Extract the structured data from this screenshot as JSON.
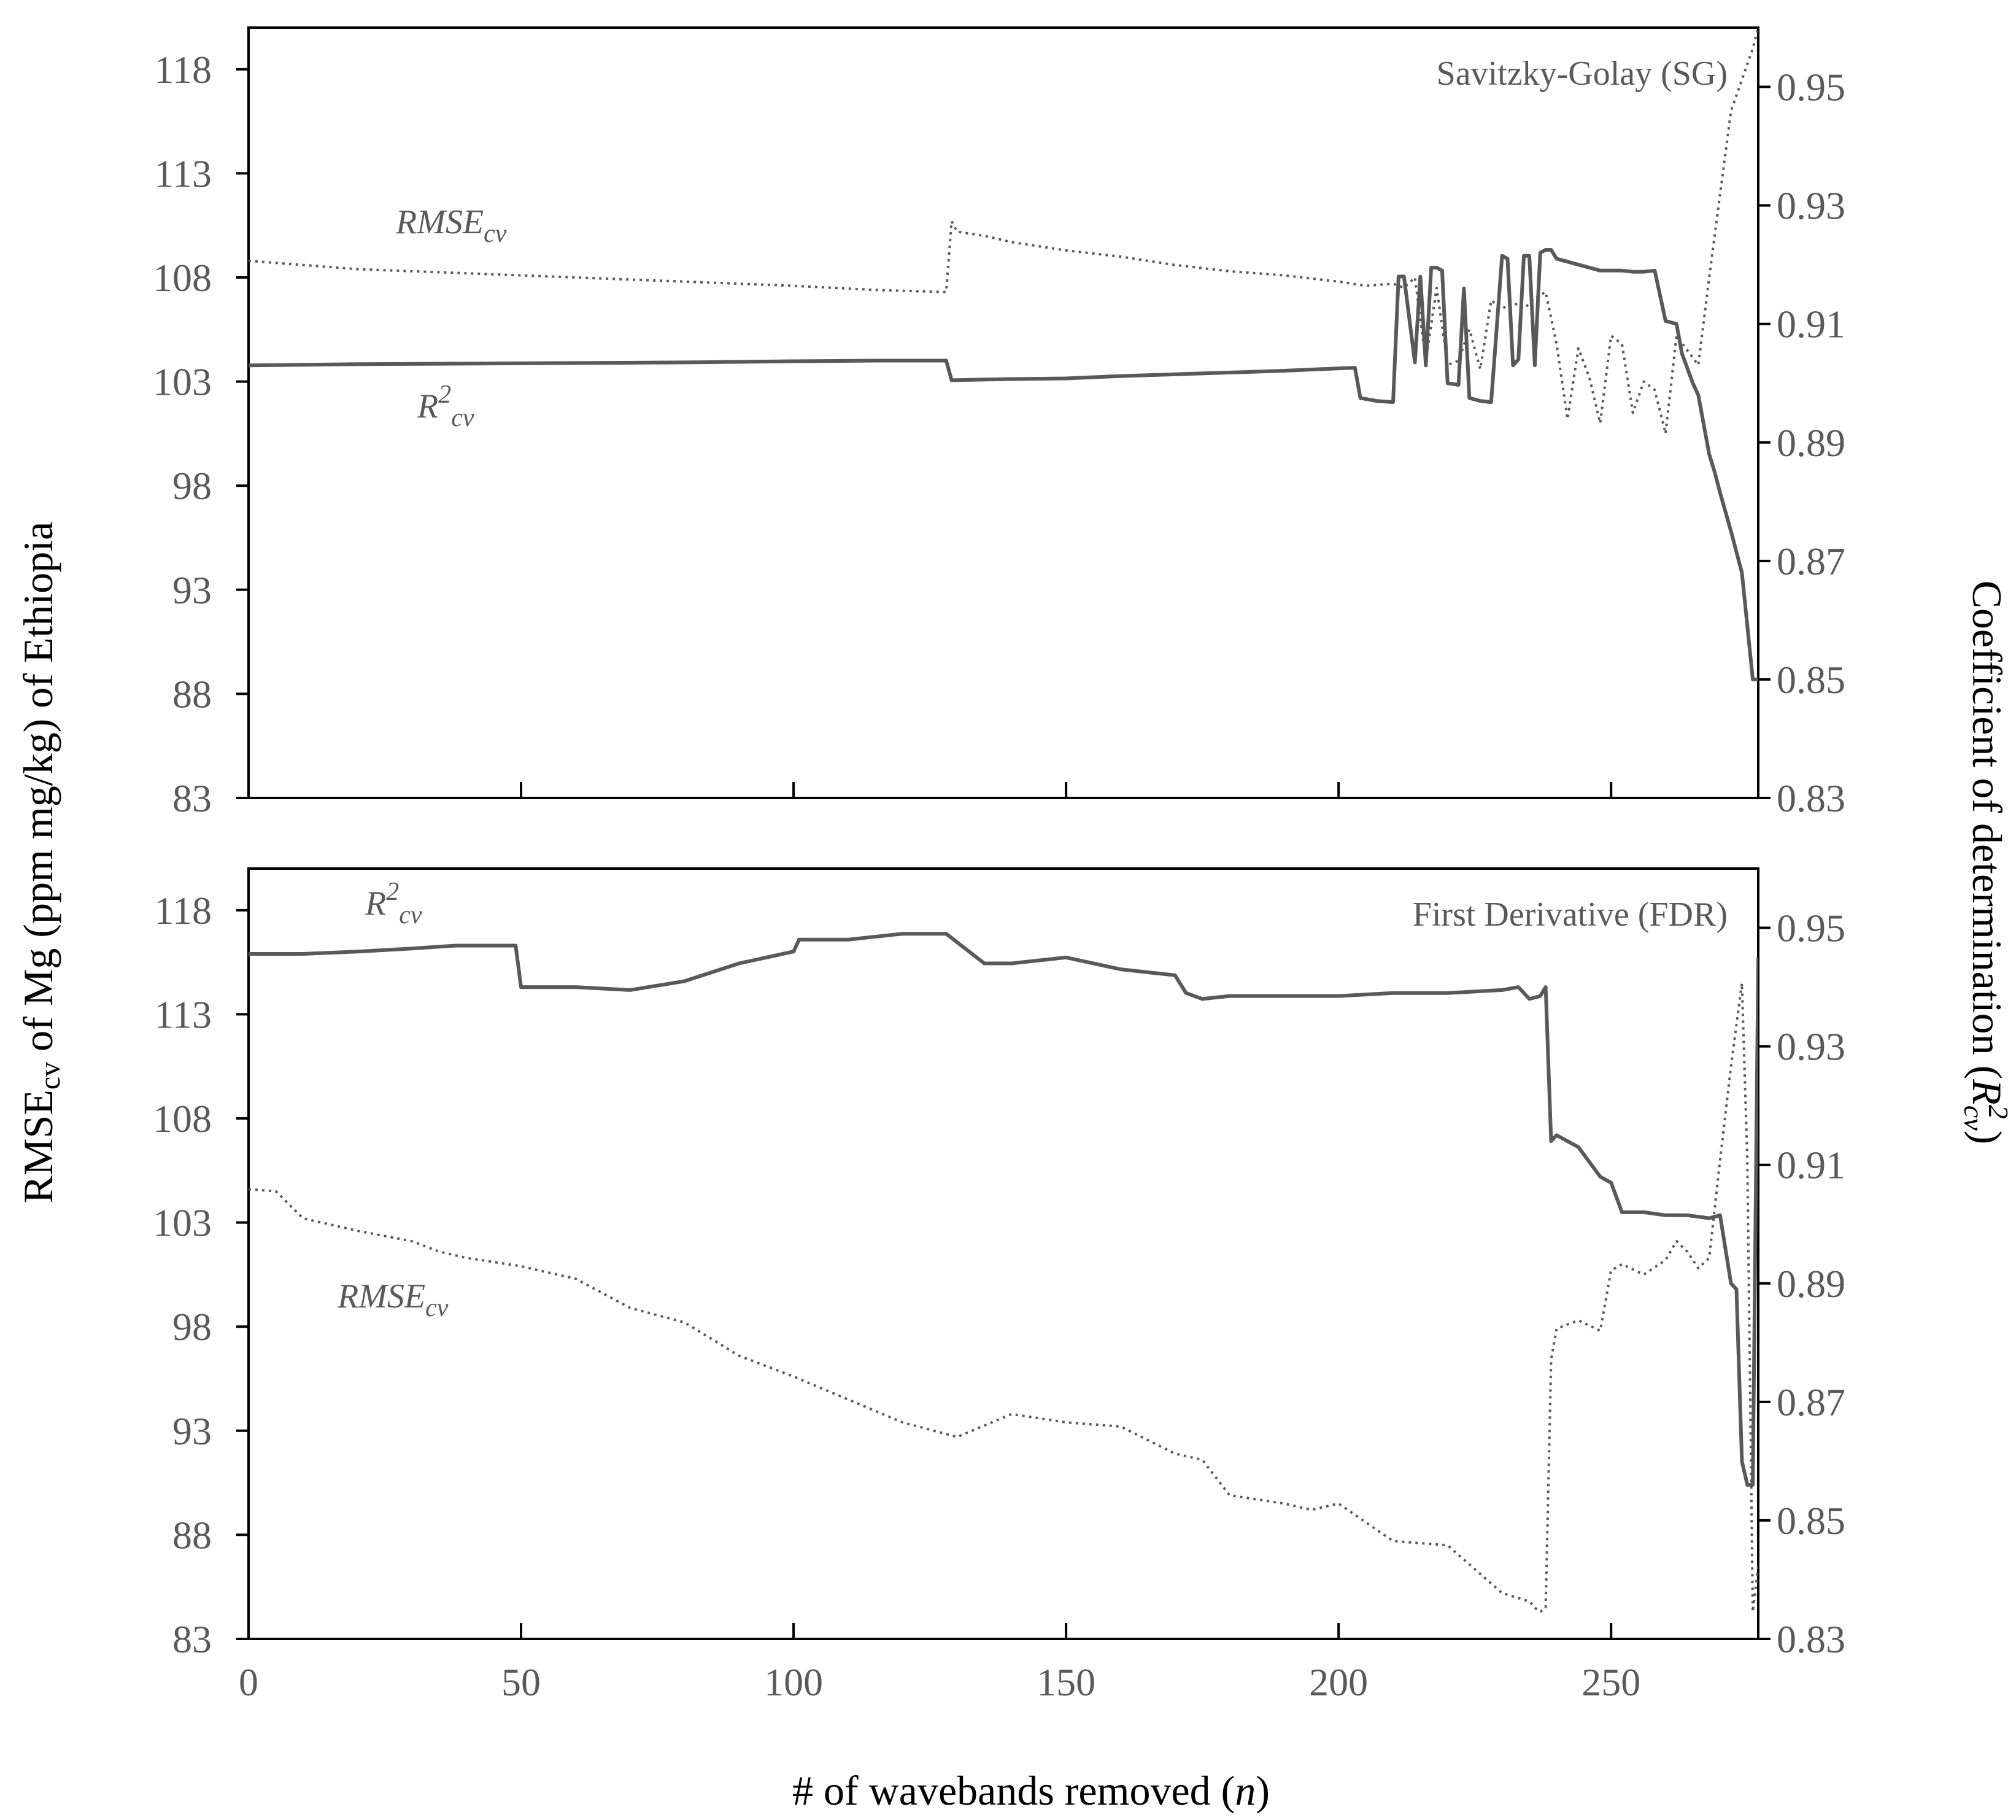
{
  "chart_data": [
    {
      "type": "line",
      "title": "Savitzky-Golay (SG)",
      "xlabel": "# of wavebands removed (n)",
      "ylabel_left": "RMSEcv of Mg (ppm mg/kg) of Ethiopia",
      "ylabel_right": "Coefficient of determination (R2cv)",
      "xlim": [
        0,
        277
      ],
      "ylim_left": [
        83,
        120
      ],
      "ylim_right": [
        0.83,
        0.96
      ],
      "x_ticks": [
        0,
        50,
        100,
        150,
        200,
        250
      ],
      "y_ticks_left": [
        83,
        88,
        93,
        98,
        103,
        108,
        113,
        118
      ],
      "y_ticks_right": [
        0.83,
        0.85,
        0.87,
        0.89,
        0.91,
        0.93,
        0.95
      ],
      "series_labels": {
        "rmse": "RMSE",
        "rmse_sub": "cv",
        "r2": "R",
        "r2_sup": "2",
        "r2_sub": "cv"
      },
      "series": [
        {
          "name": "RMSEcv",
          "axis": "left",
          "style": "dotted",
          "x": [
            0,
            20,
            40,
            60,
            80,
            100,
            115,
            128,
            129,
            130,
            135,
            140,
            150,
            160,
            170,
            180,
            190,
            200,
            205,
            210,
            212,
            214,
            216,
            218,
            220,
            222,
            224,
            226,
            228,
            230,
            232,
            234,
            236,
            238,
            240,
            242,
            244,
            246,
            248,
            250,
            252,
            254,
            256,
            258,
            260,
            262,
            264,
            266,
            268,
            270,
            272,
            274,
            276,
            277
          ],
          "values": [
            108.8,
            108.4,
            108.2,
            108.0,
            107.8,
            107.6,
            107.4,
            107.3,
            110.7,
            110.2,
            110.0,
            109.7,
            109.3,
            109.0,
            108.6,
            108.3,
            108.1,
            107.8,
            107.6,
            107.7,
            107.5,
            108.0,
            104.0,
            107.5,
            103.8,
            104.0,
            105.5,
            103.6,
            106.9,
            106.5,
            106.8,
            106.5,
            107.0,
            107.3,
            104.8,
            101.2,
            104.6,
            103.2,
            101.0,
            105.2,
            104.8,
            101.5,
            103.0,
            102.6,
            100.5,
            105.2,
            104.5,
            103.8,
            108.0,
            112.0,
            116.0,
            117.5,
            119.0,
            120.0
          ]
        },
        {
          "name": "R2cv",
          "axis": "right",
          "style": "solid",
          "x": [
            0,
            20,
            40,
            60,
            80,
            100,
            115,
            128,
            129,
            140,
            150,
            160,
            170,
            180,
            190,
            200,
            203,
            204,
            207,
            210,
            211,
            212,
            214,
            215,
            216,
            217,
            218,
            219,
            220,
            222,
            223,
            224,
            226,
            228,
            230,
            231,
            232,
            233,
            234,
            235,
            236,
            237,
            238,
            239,
            240,
            242,
            244,
            246,
            248,
            250,
            252,
            254,
            256,
            258,
            260,
            262,
            263,
            265,
            266,
            267,
            268,
            269,
            270,
            272,
            274,
            276,
            277
          ],
          "values": [
            0.903,
            0.9032,
            0.9033,
            0.9034,
            0.9035,
            0.9037,
            0.9038,
            0.9038,
            0.9005,
            0.9007,
            0.9008,
            0.9012,
            0.9015,
            0.9018,
            0.9021,
            0.9025,
            0.9026,
            0.8975,
            0.897,
            0.8968,
            0.918,
            0.918,
            0.9035,
            0.918,
            0.903,
            0.9195,
            0.9195,
            0.919,
            0.9,
            0.8997,
            0.916,
            0.8975,
            0.897,
            0.8968,
            0.9215,
            0.921,
            0.903,
            0.904,
            0.9215,
            0.9215,
            0.903,
            0.922,
            0.9225,
            0.9225,
            0.921,
            0.9205,
            0.92,
            0.9195,
            0.919,
            0.919,
            0.919,
            0.9188,
            0.9188,
            0.919,
            0.9105,
            0.91,
            0.905,
            0.9,
            0.898,
            0.893,
            0.888,
            0.885,
            0.8815,
            0.875,
            0.868,
            0.85,
            0.85
          ]
        }
      ]
    },
    {
      "type": "line",
      "title": "First Derivative (FDR)",
      "xlabel": "# of wavebands removed (n)",
      "ylabel_left": "RMSEcv of Mg (ppm mg/kg) of Ethiopia",
      "ylabel_right": "Coefficient of determination (R2cv)",
      "xlim": [
        0,
        277
      ],
      "ylim_left": [
        83,
        120
      ],
      "ylim_right": [
        0.83,
        0.96
      ],
      "x_ticks": [
        0,
        50,
        100,
        150,
        200,
        250
      ],
      "y_ticks_left": [
        83,
        88,
        93,
        98,
        103,
        108,
        113,
        118
      ],
      "y_ticks_right": [
        0.83,
        0.85,
        0.87,
        0.89,
        0.91,
        0.93,
        0.95
      ],
      "series_labels": {
        "rmse": "RMSE",
        "rmse_sub": "cv",
        "r2": "R",
        "r2_sup": "2",
        "r2_sub": "cv"
      },
      "series": [
        {
          "name": "RMSEcv",
          "axis": "left",
          "style": "dotted",
          "x": [
            0,
            5,
            10,
            20,
            30,
            35,
            40,
            50,
            60,
            70,
            80,
            90,
            100,
            110,
            120,
            130,
            140,
            150,
            160,
            170,
            175,
            180,
            190,
            195,
            200,
            210,
            220,
            230,
            235,
            236,
            237,
            238,
            239,
            240,
            244,
            248,
            250,
            252,
            256,
            260,
            262,
            264,
            266,
            268,
            270,
            272,
            274,
            275,
            276,
            277
          ],
          "values": [
            104.6,
            104.5,
            103.2,
            102.6,
            102.1,
            101.6,
            101.3,
            100.9,
            100.3,
            98.9,
            98.2,
            96.6,
            95.6,
            94.5,
            93.4,
            92.7,
            93.8,
            93.4,
            93.2,
            91.9,
            91.6,
            89.9,
            89.5,
            89.2,
            89.5,
            87.7,
            87.5,
            85.2,
            84.8,
            84.5,
            84.3,
            84.5,
            96.4,
            97.9,
            98.3,
            97.8,
            100.7,
            101.0,
            100.5,
            101.2,
            102.1,
            101.6,
            100.8,
            101.3,
            106.0,
            110.5,
            114.5,
            106.0,
            84.3,
            86.5
          ]
        },
        {
          "name": "R2cv",
          "axis": "right",
          "style": "solid",
          "x": [
            0,
            10,
            20,
            30,
            38,
            49,
            50,
            60,
            70,
            80,
            90,
            100,
            101,
            110,
            120,
            128,
            135,
            140,
            150,
            160,
            170,
            172,
            175,
            180,
            190,
            200,
            210,
            220,
            230,
            233,
            235,
            237,
            238,
            239,
            240,
            244,
            248,
            250,
            252,
            256,
            260,
            264,
            268,
            270,
            272,
            273,
            274,
            275,
            276,
            277
          ],
          "values": [
            0.9456,
            0.9456,
            0.946,
            0.9465,
            0.947,
            0.947,
            0.94,
            0.94,
            0.9395,
            0.941,
            0.944,
            0.946,
            0.948,
            0.948,
            0.949,
            0.949,
            0.944,
            0.944,
            0.945,
            0.943,
            0.942,
            0.939,
            0.938,
            0.9385,
            0.9385,
            0.9385,
            0.939,
            0.939,
            0.9395,
            0.94,
            0.938,
            0.9385,
            0.94,
            0.914,
            0.915,
            0.913,
            0.908,
            0.907,
            0.902,
            0.902,
            0.9015,
            0.9015,
            0.901,
            0.9015,
            0.89,
            0.889,
            0.86,
            0.856,
            0.856,
            0.945
          ]
        }
      ]
    }
  ]
}
